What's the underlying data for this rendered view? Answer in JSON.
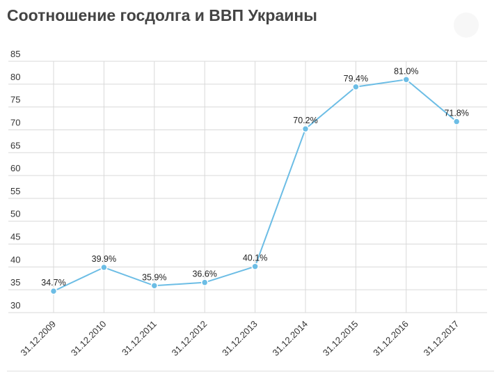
{
  "chart_data": {
    "type": "line",
    "title": "Соотношение госдолга и ВВП Украины",
    "categories": [
      "31.12.2009",
      "31.12.2010",
      "31.12.2011",
      "31.12.2012",
      "31.12.2013",
      "31.12.2014",
      "31.12.2015",
      "31.12.2016",
      "31.12.2017"
    ],
    "values": [
      34.7,
      39.9,
      35.9,
      36.6,
      40.1,
      70.2,
      79.4,
      81.0,
      71.8
    ],
    "value_labels": [
      "34.7%",
      "39.9%",
      "35.9%",
      "36.6%",
      "40.1%",
      "70.2%",
      "79.4%",
      "81.0%",
      "71.8%"
    ],
    "color": "#6cbde5",
    "ylim": [
      30,
      85
    ],
    "yticks": [
      30,
      35,
      40,
      45,
      50,
      55,
      60,
      65,
      70,
      75,
      80,
      85
    ],
    "grid": true
  }
}
